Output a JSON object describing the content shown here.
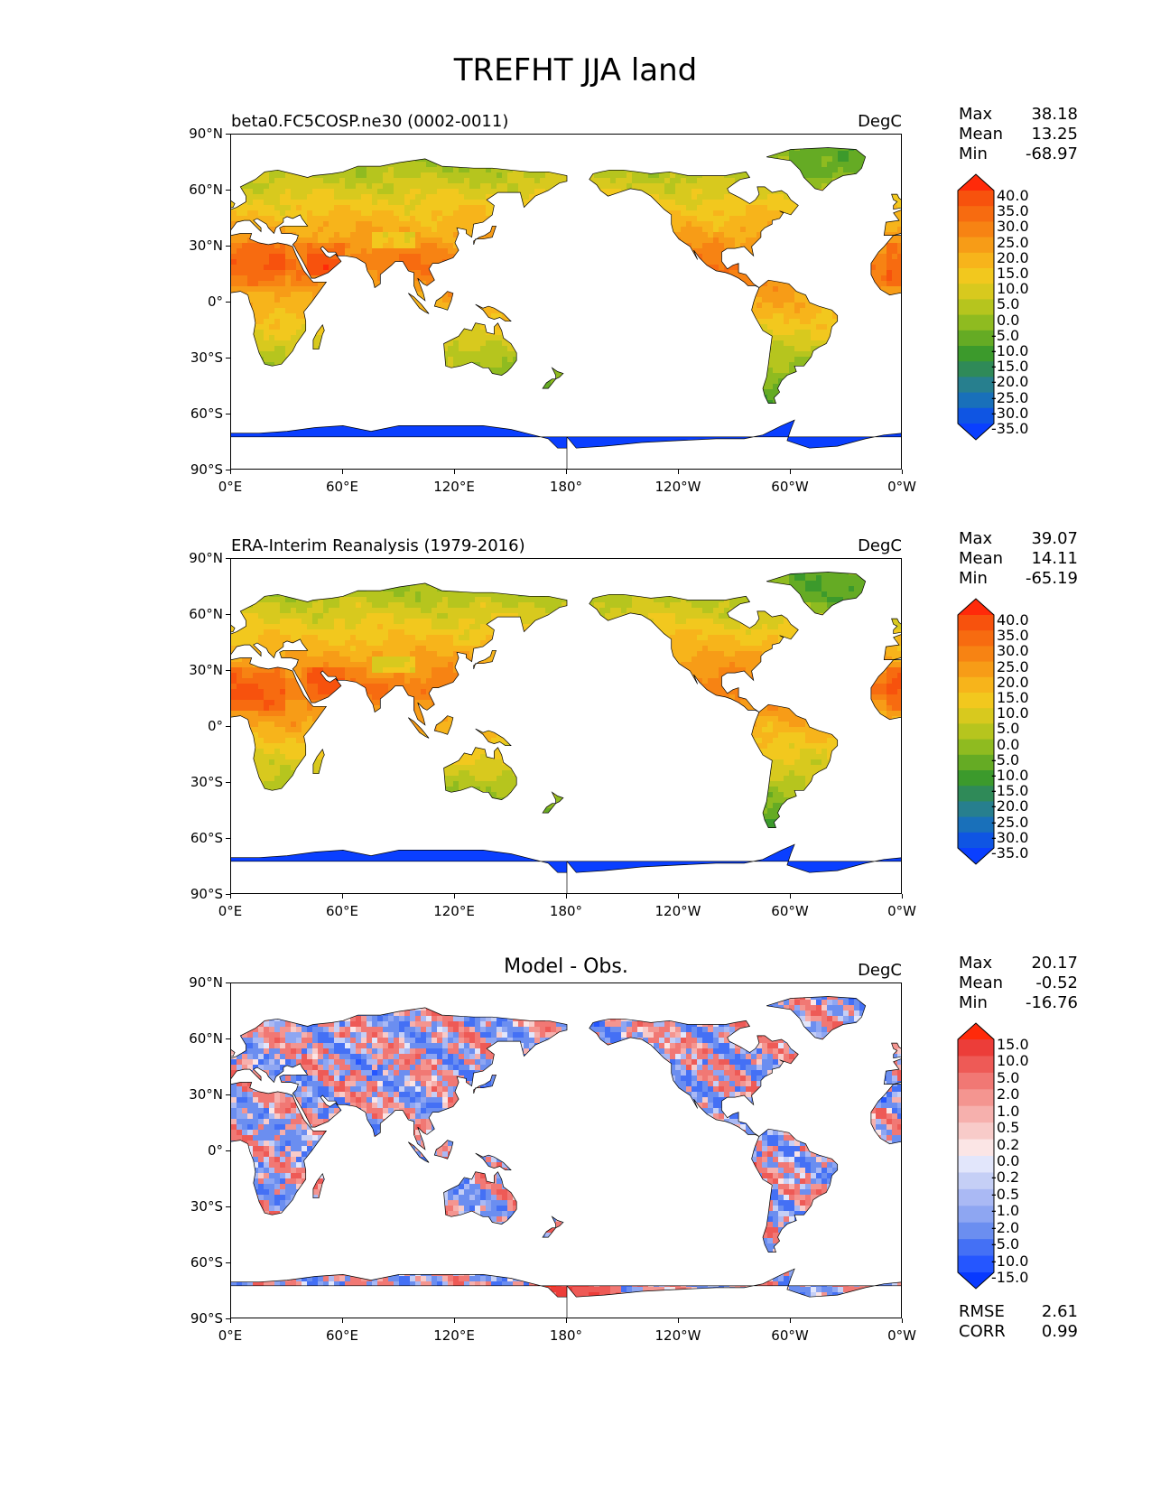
{
  "title": "TREFHT JJA land",
  "colors": {
    "ocean": "#ffffff",
    "coast": "#000000",
    "temp_scale": [
      "#0a3fff",
      "#0f55e3",
      "#1970ba",
      "#277f8e",
      "#2f8a58",
      "#3c9a2c",
      "#65ab24",
      "#8fbb20",
      "#b6c51e",
      "#d8c91e",
      "#f2c81e",
      "#f7b41b",
      "#f79c17",
      "#f78313",
      "#f76b10",
      "#f7520d",
      "#ff2a0a"
    ],
    "diff_scale": [
      "#0839ff",
      "#2556ff",
      "#4470f5",
      "#6b8ef0",
      "#8ea6f2",
      "#aab9f4",
      "#c5cff6",
      "#e2e6fb",
      "#fbe5e5",
      "#f8cbc9",
      "#f6b0ad",
      "#f49590",
      "#f17874",
      "#ee5a56",
      "#ec3d39",
      "#ff2a0a"
    ]
  },
  "panels": [
    {
      "id": "model",
      "subtitle": "beta0.FC5COSP.ne30 (0002-0011)",
      "units": "DegC",
      "stats": [
        {
          "label": "Max",
          "value": "38.18"
        },
        {
          "label": "Mean",
          "value": "13.25"
        },
        {
          "label": "Min",
          "value": "-68.97"
        }
      ],
      "colorbar_labels": [
        "40.0",
        "35.0",
        "30.0",
        "25.0",
        "20.0",
        "15.0",
        "10.0",
        "5.0",
        "0.0",
        "-5.0",
        "-10.0",
        "-15.0",
        "-20.0",
        "-25.0",
        "-30.0",
        "-35.0"
      ],
      "scale": "temp"
    },
    {
      "id": "obs",
      "subtitle": "ERA-Interim Reanalysis (1979-2016)",
      "units": "DegC",
      "stats": [
        {
          "label": "Max",
          "value": "39.07"
        },
        {
          "label": "Mean",
          "value": "14.11"
        },
        {
          "label": "Min",
          "value": "-65.19"
        }
      ],
      "colorbar_labels": [
        "40.0",
        "35.0",
        "30.0",
        "25.0",
        "20.0",
        "15.0",
        "10.0",
        "5.0",
        "0.0",
        "-5.0",
        "-10.0",
        "-15.0",
        "-20.0",
        "-25.0",
        "-30.0",
        "-35.0"
      ],
      "scale": "temp"
    },
    {
      "id": "diff",
      "subtitle": "Model - Obs.",
      "units": "DegC",
      "stats": [
        {
          "label": "Max",
          "value": "20.17"
        },
        {
          "label": "Mean",
          "value": "-0.52"
        },
        {
          "label": "Min",
          "value": "-16.76"
        }
      ],
      "colorbar_labels": [
        "15.0",
        "10.0",
        "5.0",
        "2.0",
        "1.0",
        "0.5",
        "0.2",
        "0.0",
        "-0.2",
        "-0.5",
        "-1.0",
        "-2.0",
        "-5.0",
        "-10.0",
        "-15.0"
      ],
      "scale": "diff",
      "extra_stats": [
        {
          "label": "RMSE",
          "value": "2.61"
        },
        {
          "label": "CORR",
          "value": "0.99"
        }
      ]
    }
  ],
  "axes": {
    "yticks": [
      "90°N",
      "60°N",
      "30°N",
      "0°",
      "30°S",
      "60°S",
      "90°S"
    ],
    "xticks": [
      "0°E",
      "60°E",
      "120°E",
      "180°",
      "120°W",
      "60°W",
      "0°W"
    ]
  },
  "chart_data": {
    "type": "heatmap",
    "title": "TREFHT JJA land",
    "projection": "PlateCarree, central longitude 180",
    "xlim": [
      0,
      360
    ],
    "ylim": [
      -90,
      90
    ],
    "maps": [
      {
        "name": "beta0.FC5COSP.ne30 (0002-0011)",
        "units": "DegC",
        "max": 38.18,
        "mean": 13.25,
        "min": -68.97,
        "levels": [
          -35,
          -30,
          -25,
          -20,
          -15,
          -10,
          -5,
          0,
          5,
          10,
          15,
          20,
          25,
          30,
          35,
          40
        ]
      },
      {
        "name": "ERA-Interim Reanalysis (1979-2016)",
        "units": "DegC",
        "max": 39.07,
        "mean": 14.11,
        "min": -65.19,
        "levels": [
          -35,
          -30,
          -25,
          -20,
          -15,
          -10,
          -5,
          0,
          5,
          10,
          15,
          20,
          25,
          30,
          35,
          40
        ]
      },
      {
        "name": "Model - Obs.",
        "units": "DegC",
        "max": 20.17,
        "mean": -0.52,
        "min": -16.76,
        "rmse": 2.61,
        "corr": 0.99,
        "levels": [
          -15,
          -10,
          -5,
          -2,
          -1,
          -0.5,
          -0.2,
          0,
          0.2,
          0.5,
          1,
          2,
          5,
          10,
          15
        ]
      }
    ]
  }
}
